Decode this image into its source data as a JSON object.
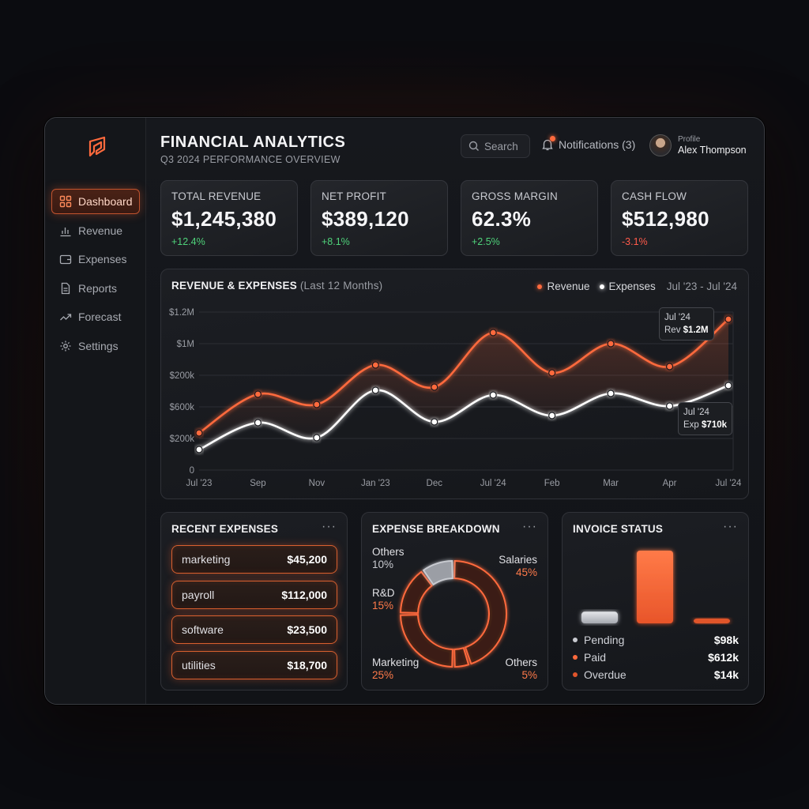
{
  "app": {
    "title": "FINANCIAL ANALYTICS",
    "subtitle": "Q3 2024 PERFORMANCE OVERVIEW"
  },
  "colors": {
    "accent": "#ff6a3d",
    "positive": "#4fd37a",
    "negative": "#ff5a4a"
  },
  "sidebar": {
    "logo": "brand-logo-icon",
    "items": [
      {
        "label": "Dashboard",
        "icon": "grid-icon",
        "active": true
      },
      {
        "label": "Revenue",
        "icon": "bar-chart-icon",
        "active": false
      },
      {
        "label": "Expenses",
        "icon": "wallet-icon",
        "active": false
      },
      {
        "label": "Reports",
        "icon": "document-icon",
        "active": false
      },
      {
        "label": "Forecast",
        "icon": "trend-icon",
        "active": false
      },
      {
        "label": "Settings",
        "icon": "gear-icon",
        "active": false
      }
    ]
  },
  "header": {
    "search_label": "Search",
    "notifications_label": "Notifications (3)",
    "profile_label": "Profile",
    "profile_name": "Alex Thompson"
  },
  "kpis": [
    {
      "label": "TOTAL REVENUE",
      "value": "$1,245,380",
      "delta": "+12.4%",
      "trend": "up"
    },
    {
      "label": "NET PROFIT",
      "value": "$389,120",
      "delta": "+8.1%",
      "trend": "up"
    },
    {
      "label": "GROSS MARGIN",
      "value": "62.3%",
      "delta": "+2.5%",
      "trend": "up"
    },
    {
      "label": "CASH FLOW",
      "value": "$512,980",
      "delta": "-3.1%",
      "trend": "down"
    }
  ],
  "main_chart": {
    "title": "REVENUE & EXPENSES",
    "title_note": "(Last 12 Months)",
    "legend_revenue": "Revenue",
    "legend_expenses": "Expenses",
    "range": "Jul '23 - Jul '24",
    "tooltip_rev_date": "Jul '24",
    "tooltip_rev_prefix": "Rev",
    "tooltip_rev_value": "$1.2M",
    "tooltip_exp_date": "Jul '24",
    "tooltip_exp_prefix": "Exp",
    "tooltip_exp_value": "$710k"
  },
  "chart_data": {
    "type": "line",
    "x": [
      "Jul '23",
      "Sep",
      "Nov",
      "Jan '23",
      "Dec",
      "Jul '24",
      "Feb",
      "Mar",
      "Apr",
      "Jul '24"
    ],
    "yticks": [
      "$1.2M",
      "$1M",
      "$200k",
      "$600k",
      "$200k",
      "0"
    ],
    "series": [
      {
        "name": "Revenue",
        "color": "#ff6a3d",
        "values": [
          0.235,
          0.48,
          0.415,
          0.665,
          0.525,
          0.87,
          0.615,
          0.8,
          0.655,
          0.955
        ]
      },
      {
        "name": "Expenses",
        "color": "#ffffff",
        "values": [
          0.13,
          0.3,
          0.205,
          0.505,
          0.305,
          0.475,
          0.345,
          0.485,
          0.405,
          0.535
        ]
      }
    ],
    "grid": true,
    "legend": "top-right"
  },
  "recent_expenses": {
    "title": "RECENT EXPENSES",
    "items": [
      {
        "name": "marketing",
        "amount": "$45,200"
      },
      {
        "name": "payroll",
        "amount": "$112,000"
      },
      {
        "name": "software",
        "amount": "$23,500"
      },
      {
        "name": "utilities",
        "amount": "$18,700"
      }
    ]
  },
  "expense_breakdown": {
    "title": "EXPENSE BREAKDOWN",
    "segments": [
      {
        "name": "Salaries",
        "pct": "45%",
        "value": 45,
        "color": "#ff6a3d"
      },
      {
        "name": "Others",
        "pct": "5%",
        "value": 5,
        "color": "#ff6a3d"
      },
      {
        "name": "Marketing",
        "pct": "25%",
        "value": 25,
        "color": "#ff6a3d"
      },
      {
        "name": "R&D",
        "pct": "15%",
        "value": 15,
        "color": "#ff6a3d"
      },
      {
        "name": "Others",
        "pct": "10%",
        "value": 10,
        "color": "#c8cad0"
      }
    ]
  },
  "invoice_status": {
    "title": "INVOICE STATUS",
    "items": [
      {
        "label": "Pending",
        "amount": "$98k",
        "value": 98,
        "color": "#c8cad0"
      },
      {
        "label": "Paid",
        "amount": "$612k",
        "value": 612,
        "color": "#ff6a3d"
      },
      {
        "label": "Overdue",
        "amount": "$14k",
        "value": 14,
        "color": "#e0552c"
      }
    ]
  }
}
